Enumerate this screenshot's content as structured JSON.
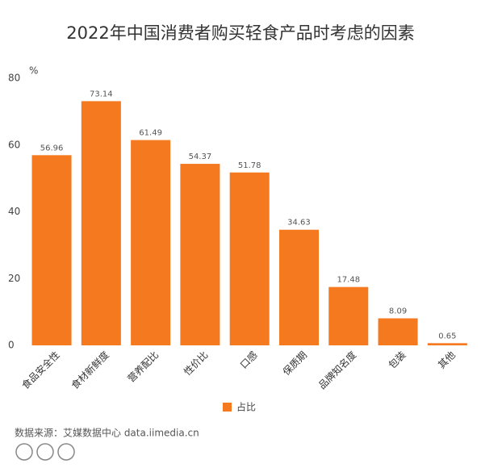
{
  "chart_data": {
    "type": "bar",
    "title": "2022年中国消费者购买轻食产品时考虑的因素",
    "y_label": "%",
    "categories": [
      "食品安全性",
      "食材新鲜度",
      "营养配比",
      "性价比",
      "口感",
      "保质期",
      "品牌知名度",
      "包装",
      "其他"
    ],
    "series": [
      {
        "name": "占比",
        "color": "#f5791f",
        "values": [
          56.96,
          73.14,
          61.49,
          54.37,
          51.78,
          34.63,
          17.48,
          8.09,
          0.65
        ]
      }
    ],
    "ylim": [
      0,
      80
    ],
    "yticks": [
      0,
      20,
      40,
      60,
      80
    ],
    "grid": false,
    "source": "数据来源：艾媒数据中心 data.iimedia.cn"
  }
}
